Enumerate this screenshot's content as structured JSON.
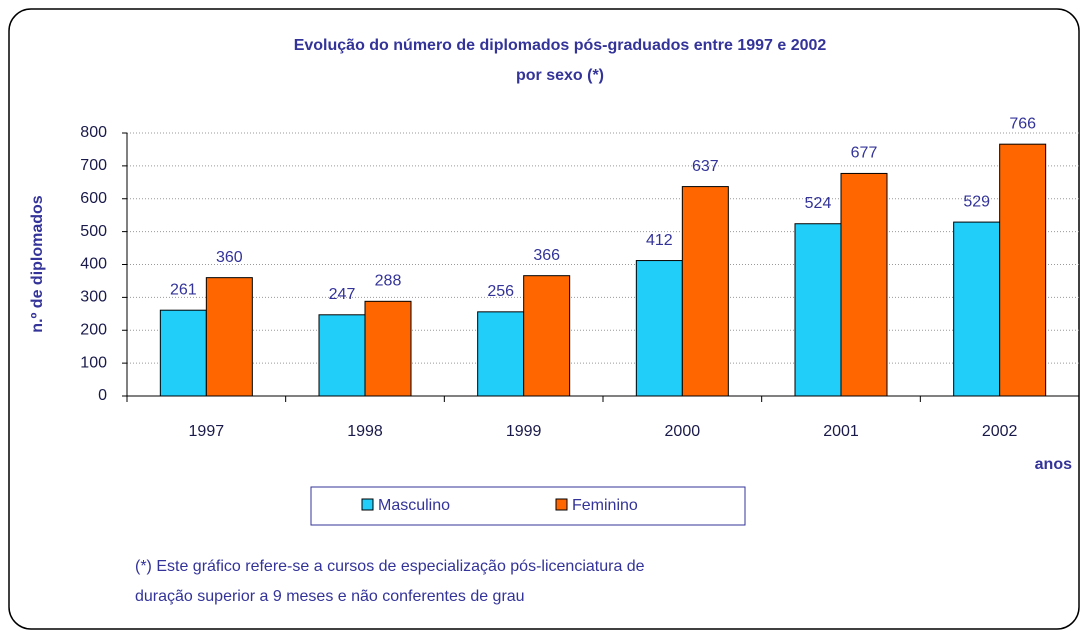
{
  "chart_data": {
    "type": "bar",
    "title": "Evolução do número de diplomados pós-graduados entre 1997 e 2002",
    "subtitle": "por sexo (*)",
    "y_label": "n.º de diplomados",
    "x_label": "anos",
    "categories": [
      "1997",
      "1998",
      "1999",
      "2000",
      "2001",
      "2002"
    ],
    "series": [
      {
        "name": "Masculino",
        "color": "#21cdf9",
        "values": [
          261,
          247,
          256,
          412,
          524,
          529
        ]
      },
      {
        "name": "Feminino",
        "color": "#ff6600",
        "values": [
          360,
          288,
          366,
          637,
          677,
          766
        ]
      }
    ],
    "ylim": [
      0,
      800
    ],
    "yticks": [
      0,
      100,
      200,
      300,
      400,
      500,
      600,
      700,
      800
    ],
    "grid": true,
    "legend": "bottom",
    "notes": [
      "(*) Este gráfico refere-se a cursos de especialização pós-licenciatura de",
      "duração superior a 9 meses e não conferentes de grau"
    ]
  }
}
